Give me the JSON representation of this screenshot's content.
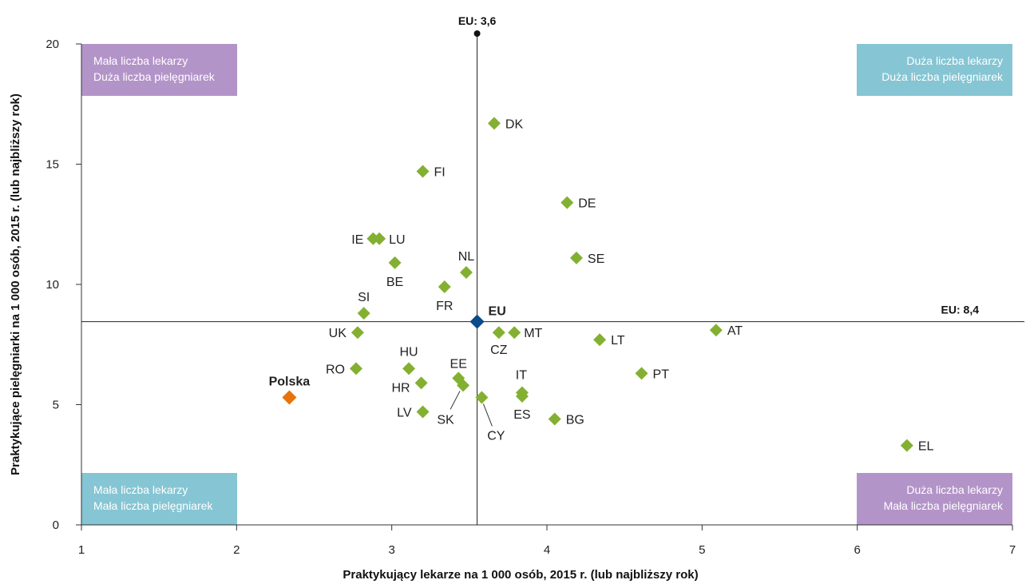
{
  "chart_data": {
    "type": "scatter",
    "xlabel": "Praktykujący lekarze na 1 000 osób, 2015 r. (lub najbliższy rok)",
    "ylabel": "Praktykujące pielęgniarki na 1 000 osób, 2015 r. (lub najbliższy rok)",
    "xlim": [
      1,
      7
    ],
    "ylim": [
      0,
      20
    ],
    "xticks": [
      "1",
      "2",
      "3",
      "4",
      "5",
      "6",
      "7"
    ],
    "yticks": [
      "0",
      "5",
      "10",
      "15",
      "20"
    ],
    "grid": false,
    "colors": {
      "country": "#84b032",
      "highlight": "#e8730c",
      "eu": "#0b4a8b",
      "quad_purple": "#b394c8",
      "quad_teal": "#86c5d3"
    },
    "reference": {
      "x": 3.55,
      "x_label": "EU: 3,6",
      "y": 8.45,
      "y_label": "EU: 8,4"
    },
    "quadrants": [
      {
        "pos": "top-left",
        "lines": [
          "Mała liczba lekarzy",
          "Duża liczba pielęgniarek"
        ],
        "color": "#b394c8"
      },
      {
        "pos": "top-right",
        "lines": [
          "Duża liczba lekarzy",
          "Duża liczba pielęgniarek"
        ],
        "color": "#86c5d3"
      },
      {
        "pos": "bottom-left",
        "lines": [
          "Mała liczba lekarzy",
          "Mała liczba pielęgniarek"
        ],
        "color": "#86c5d3"
      },
      {
        "pos": "bottom-right",
        "lines": [
          "Duża liczba lekarzy",
          "Mała liczba pielęgniarek"
        ],
        "color": "#b394c8"
      }
    ],
    "points": [
      {
        "label": "DK",
        "x": 3.66,
        "y": 16.7,
        "kind": "country"
      },
      {
        "label": "FI",
        "x": 3.2,
        "y": 14.7,
        "kind": "country"
      },
      {
        "label": "DE",
        "x": 4.13,
        "y": 13.4,
        "kind": "country"
      },
      {
        "label": "IE",
        "x": 2.88,
        "y": 11.9,
        "kind": "country"
      },
      {
        "label": "LU",
        "x": 2.92,
        "y": 11.9,
        "kind": "country"
      },
      {
        "label": "SE",
        "x": 4.19,
        "y": 11.1,
        "kind": "country"
      },
      {
        "label": "BE",
        "x": 3.02,
        "y": 10.9,
        "kind": "country"
      },
      {
        "label": "NL",
        "x": 3.48,
        "y": 10.5,
        "kind": "country"
      },
      {
        "label": "FR",
        "x": 3.34,
        "y": 9.9,
        "kind": "country"
      },
      {
        "label": "SI",
        "x": 2.82,
        "y": 8.8,
        "kind": "country"
      },
      {
        "label": "EU",
        "x": 3.55,
        "y": 8.45,
        "kind": "eu"
      },
      {
        "label": "UK",
        "x": 2.78,
        "y": 8.0,
        "kind": "country"
      },
      {
        "label": "CZ",
        "x": 3.69,
        "y": 8.0,
        "kind": "country"
      },
      {
        "label": "MT",
        "x": 3.79,
        "y": 8.0,
        "kind": "country"
      },
      {
        "label": "AT",
        "x": 5.09,
        "y": 8.1,
        "kind": "country"
      },
      {
        "label": "LT",
        "x": 4.34,
        "y": 7.7,
        "kind": "country"
      },
      {
        "label": "HU",
        "x": 3.11,
        "y": 6.5,
        "kind": "country"
      },
      {
        "label": "RO",
        "x": 2.77,
        "y": 6.5,
        "kind": "country"
      },
      {
        "label": "PT",
        "x": 4.61,
        "y": 6.3,
        "kind": "country"
      },
      {
        "label": "EE",
        "x": 3.43,
        "y": 6.1,
        "kind": "country"
      },
      {
        "label": "HR",
        "x": 3.19,
        "y": 5.9,
        "kind": "country"
      },
      {
        "label": "SK",
        "x": 3.46,
        "y": 5.8,
        "kind": "country"
      },
      {
        "label": "IT",
        "x": 3.84,
        "y": 5.5,
        "kind": "country"
      },
      {
        "label": "ES",
        "x": 3.84,
        "y": 5.35,
        "kind": "country"
      },
      {
        "label": "CY",
        "x": 3.58,
        "y": 5.3,
        "kind": "country"
      },
      {
        "label": "Polska",
        "x": 2.34,
        "y": 5.3,
        "kind": "highlight"
      },
      {
        "label": "LV",
        "x": 3.2,
        "y": 4.7,
        "kind": "country"
      },
      {
        "label": "BG",
        "x": 4.05,
        "y": 4.4,
        "kind": "country"
      },
      {
        "label": "EL",
        "x": 6.32,
        "y": 3.3,
        "kind": "country"
      }
    ]
  }
}
